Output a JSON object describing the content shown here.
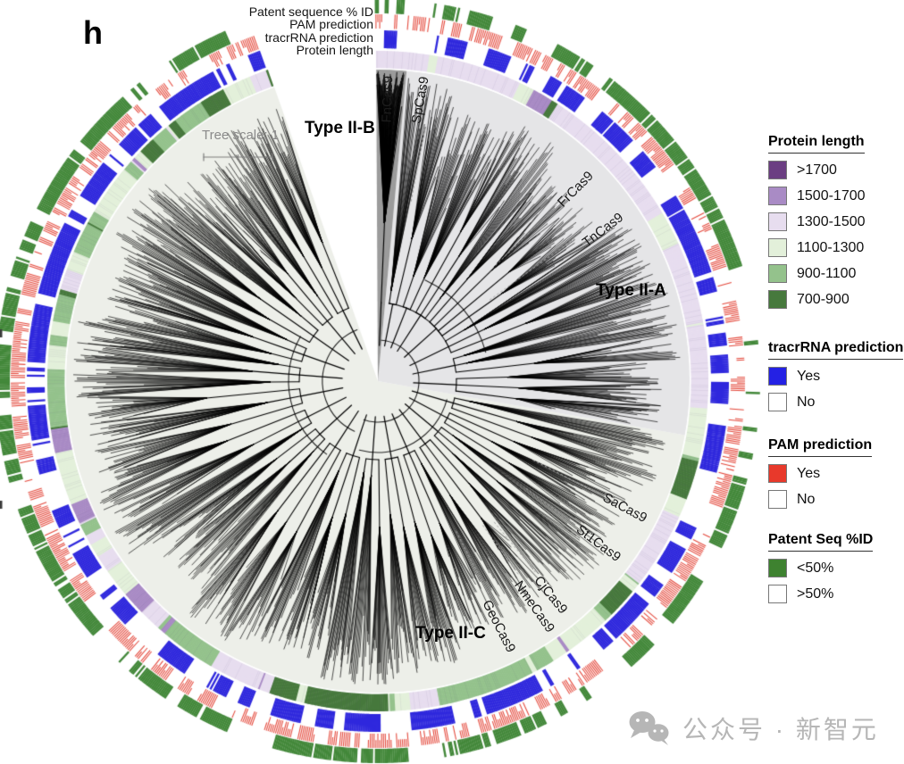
{
  "panel_label": "h",
  "ring_labels": {
    "patent": "Patent sequence % ID",
    "pam": "PAM prediction",
    "tracrrna": "tracrRNA prediction",
    "protein_length": "Protein length"
  },
  "tree": {
    "scale_label": "Tree scale: 1",
    "scale_value": "1",
    "clades": {
      "iib": "Type II-B",
      "iia": "Type II-A",
      "iic": "Type II-C"
    },
    "tips": {
      "fn": "FnCas9",
      "sp": "SpCas9",
      "fr": "FrCas9",
      "tn": "TnCas9",
      "sa": "SaCas9",
      "st1": "St1Cas9",
      "cj": "CjCas9",
      "nme": "NmeCas9",
      "geo": "GeoCas9"
    }
  },
  "legend": {
    "protein_length": {
      "title": "Protein length",
      "items": [
        {
          "label": ">1700",
          "color": "#6b3e82"
        },
        {
          "label": "1500-1700",
          "color": "#a98bc5"
        },
        {
          "label": "1300-1500",
          "color": "#e7ddef"
        },
        {
          "label": "1100-1300",
          "color": "#e3f0da"
        },
        {
          "label": "900-1100",
          "color": "#94c28c"
        },
        {
          "label": "700-900",
          "color": "#47793d"
        }
      ]
    },
    "tracrrna": {
      "title": "tracrRNA prediction",
      "items": [
        {
          "label": "Yes",
          "color": "#2421e4"
        },
        {
          "label": "No",
          "color": "#ffffff"
        }
      ]
    },
    "pam": {
      "title": "PAM prediction",
      "items": [
        {
          "label": "Yes",
          "color": "#e8392b"
        },
        {
          "label": "No",
          "color": "#ffffff"
        }
      ]
    },
    "patent": {
      "title": "Patent Seq %ID",
      "items": [
        {
          "label": "<50%",
          "color": "#3e8230"
        },
        {
          "label": ">50%",
          "color": "#ffffff"
        }
      ]
    }
  },
  "watermark": {
    "icon": "wechat-icon",
    "text": "公众号 · 新智元"
  },
  "colors": {
    "background": "#ffffff",
    "disc_type_iic": "#edefe9",
    "wedge_type_iia": "#e5e5e7",
    "wedge_type_iib": "#9b9b9b",
    "tracr_ring": "#2f28dd",
    "pam_ring": "#e4473a",
    "patent_ring": "#43883a",
    "branch": "#000000",
    "leader_line": "#a8a8a8",
    "scale_bar": "#7d7d7d"
  }
}
